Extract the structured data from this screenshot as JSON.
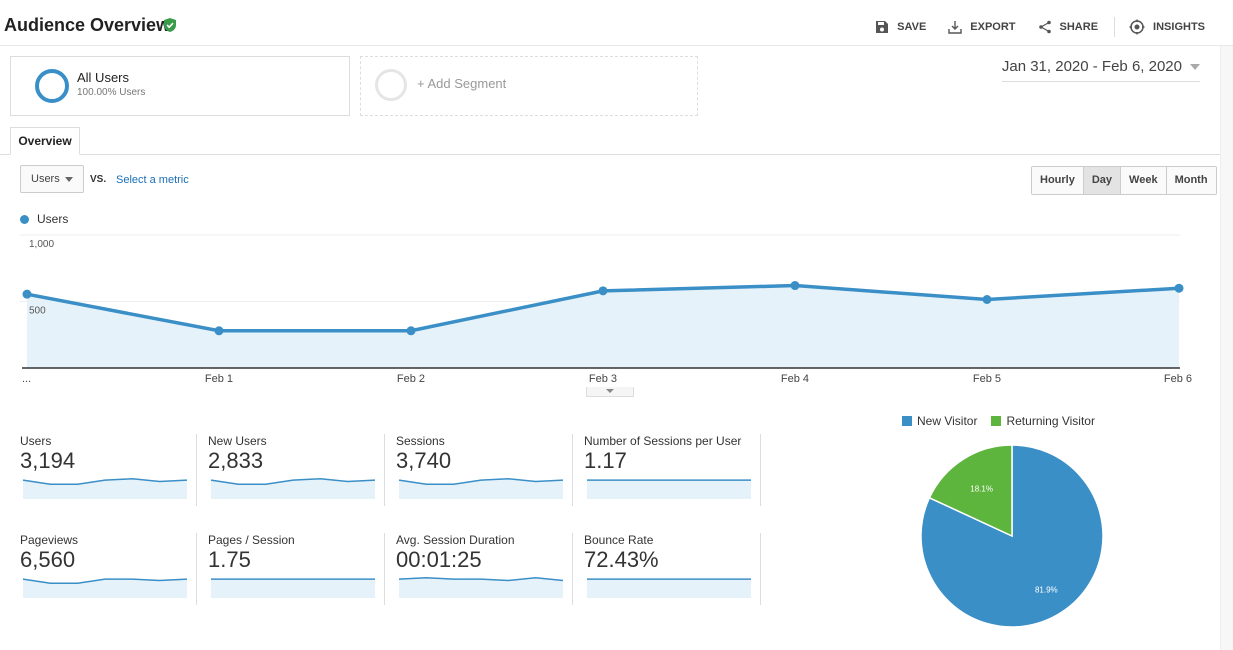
{
  "header": {
    "title": "Audience Overview",
    "actions": [
      {
        "label": "SAVE",
        "icon": "save-icon"
      },
      {
        "label": "EXPORT",
        "icon": "export-icon"
      },
      {
        "label": "SHARE",
        "icon": "share-icon"
      },
      {
        "label": "INSIGHTS",
        "icon": "insights-icon"
      }
    ]
  },
  "segments": {
    "all_users": {
      "name": "All Users",
      "sub": "100.00% Users"
    },
    "add_segment": "+ Add Segment"
  },
  "date_range": "Jan 31, 2020 - Feb 6, 2020",
  "tabs": {
    "overview": "Overview"
  },
  "controls": {
    "metric_select": "Users",
    "vs": "VS.",
    "select_metric": "Select a metric",
    "granularity": [
      "Hourly",
      "Day",
      "Week",
      "Month"
    ],
    "granularity_selected": "Day"
  },
  "chart_data": [
    {
      "type": "line",
      "series": [
        {
          "name": "Users",
          "color": "#3a8fc7",
          "values": [
            555,
            280,
            280,
            580,
            620,
            515,
            600
          ]
        }
      ],
      "categories": [
        "...",
        "Feb 1",
        "Feb 2",
        "Feb 3",
        "Feb 4",
        "Feb 5",
        "Feb 6"
      ],
      "y_ticks": [
        "1,000",
        "500"
      ],
      "ylim": [
        0,
        1000
      ],
      "area_fill": true
    },
    {
      "type": "pie",
      "categories": [
        "New Visitor",
        "Returning Visitor"
      ],
      "values": [
        81.9,
        18.1
      ],
      "data_labels": [
        "81.9%",
        "18.1%"
      ],
      "colors": [
        "#3a8fc7",
        "#5db53e"
      ],
      "legend": "top"
    }
  ],
  "kpis": [
    {
      "label": "Users",
      "value": "3,194",
      "spark": [
        5,
        2,
        2,
        5,
        6,
        4,
        5
      ]
    },
    {
      "label": "New Users",
      "value": "2,833",
      "spark": [
        5,
        2,
        2,
        5,
        6,
        4,
        5
      ]
    },
    {
      "label": "Sessions",
      "value": "3,740",
      "spark": [
        5,
        2,
        2,
        5,
        6,
        4,
        5
      ]
    },
    {
      "label": "Number of Sessions per User",
      "value": "1.17",
      "spark": [
        5,
        5,
        5,
        5,
        5,
        5,
        5
      ]
    },
    {
      "label": "Pageviews",
      "value": "6,560",
      "spark": [
        5,
        2,
        2,
        5,
        5,
        4,
        5
      ]
    },
    {
      "label": "Pages / Session",
      "value": "1.75",
      "spark": [
        5,
        5,
        5,
        5,
        5,
        5,
        5
      ]
    },
    {
      "label": "Avg. Session Duration",
      "value": "00:01:25",
      "spark": [
        5,
        6,
        5,
        5,
        4,
        6,
        4
      ]
    },
    {
      "label": "Bounce Rate",
      "value": "72.43%",
      "spark": [
        5,
        5,
        5,
        5,
        5,
        5,
        5
      ]
    }
  ],
  "colors": {
    "accent": "#3a8fc7",
    "green": "#5db53e",
    "area": "#e6f2fa",
    "link": "#1a6fb5"
  }
}
